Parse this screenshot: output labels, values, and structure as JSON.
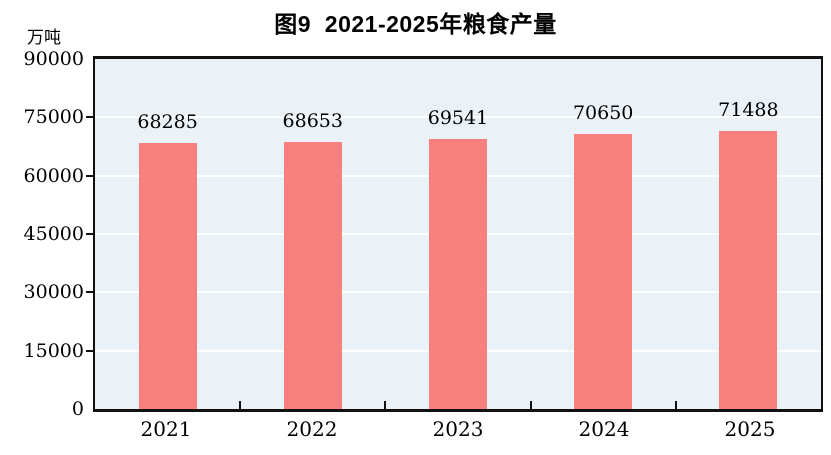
{
  "chart": {
    "title": "图9  2021-2025年粮食产量",
    "unit_label": "万吨"
  },
  "chart_data": {
    "type": "bar",
    "title": "图9  2021-2025年粮食产量",
    "ylabel_unit": "万吨",
    "categories": [
      "2021",
      "2022",
      "2023",
      "2024",
      "2025"
    ],
    "values": [
      68285,
      68653,
      69541,
      70650,
      71488
    ],
    "ylim": [
      0,
      90000
    ],
    "yticks": [
      0,
      15000,
      30000,
      45000,
      60000,
      75000,
      90000
    ],
    "grid": true,
    "legend": "none",
    "bar_color": "#F8807E",
    "plot_bg_color": "#EAF2F8",
    "grid_color": "#FFFFFF",
    "axis_color": "#111111"
  }
}
